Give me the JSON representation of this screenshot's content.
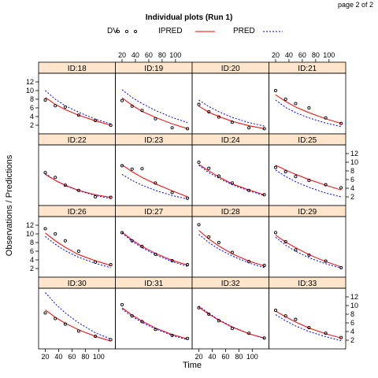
{
  "page_label": "page 2 of 2",
  "chart_data": {
    "type": "scatter",
    "title": "Individual plots (Run 1)",
    "xlabel": "Time",
    "ylabel": "Observations / Predictions",
    "xlim": [
      10,
      125
    ],
    "ylim": [
      0,
      14
    ],
    "x_ticks": [
      20,
      40,
      60,
      80,
      100
    ],
    "y_ticks": [
      2,
      4,
      6,
      8,
      10,
      12
    ],
    "layout": {
      "cols": 4,
      "rows": 4
    },
    "legend": [
      {
        "name": "DV",
        "style": "open-circles",
        "color": "#000000"
      },
      {
        "name": "IPRED",
        "style": "solid-line",
        "color": "#ff0000"
      },
      {
        "name": "PRED",
        "style": "dashed-line",
        "color": "#0000ff"
      }
    ],
    "x": [
      20,
      35,
      50,
      70,
      95,
      118
    ],
    "panels": [
      {
        "id": "ID:18",
        "dv": [
          7.8,
          6.5,
          6.2,
          4.3,
          3.1,
          2.0
        ],
        "ipred": [
          8.4,
          6.8,
          5.6,
          4.3,
          3.0,
          2.0
        ],
        "pred": [
          10.0,
          8.0,
          6.5,
          5.0,
          3.4,
          2.3
        ]
      },
      {
        "id": "ID:19",
        "dv": [
          7.7,
          6.4,
          5.4,
          3.5,
          1.4,
          1.2
        ],
        "ipred": [
          8.3,
          6.6,
          5.2,
          3.8,
          2.3,
          1.2
        ],
        "pred": [
          10.2,
          8.4,
          7.0,
          5.4,
          3.8,
          2.6
        ]
      },
      {
        "id": "ID:20",
        "dv": [
          6.8,
          5.1,
          3.9,
          2.7,
          1.4,
          1.2
        ],
        "ipred": [
          6.4,
          5.0,
          4.0,
          2.9,
          1.9,
          1.2
        ],
        "pred": [
          7.8,
          6.3,
          5.1,
          3.8,
          2.6,
          1.8
        ]
      },
      {
        "id": "ID:21",
        "dv": [
          10.0,
          8.0,
          7.0,
          6.0,
          3.7,
          2.4
        ],
        "ipred": [
          9.0,
          7.5,
          6.2,
          4.9,
          3.5,
          2.4
        ],
        "pred": [
          7.8,
          6.1,
          4.9,
          3.7,
          2.5,
          1.7
        ]
      },
      {
        "id": "ID:22",
        "dv": [
          7.6,
          6.5,
          4.7,
          3.5,
          2.0,
          1.9
        ],
        "ipred": [
          7.2,
          5.8,
          4.7,
          3.5,
          2.5,
          1.9
        ],
        "pred": [
          7.4,
          5.8,
          4.6,
          3.4,
          2.3,
          1.6
        ]
      },
      {
        "id": "ID:23",
        "dv": [
          9.2,
          8.4,
          8.5,
          5.2,
          3.0,
          1.7
        ],
        "ipred": [
          9.4,
          7.8,
          6.5,
          5.0,
          3.4,
          2.0
        ],
        "pred": [
          7.2,
          5.8,
          4.7,
          3.5,
          2.3,
          1.5
        ]
      },
      {
        "id": "ID:24",
        "dv": [
          10.0,
          8.6,
          6.8,
          5.2,
          3.5,
          2.5
        ],
        "ipred": [
          9.5,
          8.0,
          6.6,
          5.0,
          3.6,
          2.5
        ],
        "pred": [
          9.3,
          7.6,
          6.3,
          4.8,
          3.4,
          2.3
        ]
      },
      {
        "id": "ID:25",
        "dv": [
          8.8,
          7.8,
          6.7,
          5.8,
          4.8,
          4.1
        ],
        "ipred": [
          9.3,
          8.2,
          7.2,
          6.0,
          4.7,
          3.6
        ],
        "pred": [
          8.2,
          6.7,
          5.5,
          4.2,
          2.9,
          2.0
        ]
      },
      {
        "id": "ID:26",
        "dv": [
          11.2,
          10.0,
          8.4,
          6.0,
          3.5,
          2.9
        ],
        "ipred": [
          10.2,
          8.4,
          6.9,
          5.2,
          3.8,
          2.7
        ],
        "pred": [
          9.4,
          7.6,
          6.1,
          4.6,
          3.2,
          2.2
        ]
      },
      {
        "id": "ID:27",
        "dv": [
          10.3,
          8.4,
          7.1,
          5.3,
          3.8,
          2.9
        ],
        "ipred": [
          10.4,
          8.6,
          7.1,
          5.5,
          3.9,
          2.8
        ],
        "pred": [
          10.2,
          8.3,
          6.8,
          5.2,
          3.6,
          2.5
        ]
      },
      {
        "id": "ID:28",
        "dv": [
          12.1,
          9.3,
          8.0,
          5.7,
          3.6,
          2.7
        ],
        "ipred": [
          10.8,
          8.8,
          7.2,
          5.4,
          3.7,
          2.6
        ],
        "pred": [
          9.9,
          8.0,
          6.5,
          4.9,
          3.3,
          2.2
        ]
      },
      {
        "id": "ID:29",
        "dv": [
          10.3,
          8.2,
          6.3,
          5.1,
          3.7,
          2.2
        ],
        "ipred": [
          9.7,
          8.1,
          6.8,
          5.2,
          3.6,
          2.4
        ],
        "pred": [
          9.2,
          7.4,
          6.0,
          4.5,
          3.1,
          2.1
        ]
      },
      {
        "id": "ID:30",
        "dv": [
          8.3,
          7.0,
          5.7,
          4.1,
          2.9,
          2.1
        ],
        "ipred": [
          9.0,
          7.3,
          5.9,
          4.4,
          2.9,
          1.8
        ],
        "pred": [
          13.0,
          10.4,
          8.3,
          6.0,
          3.7,
          2.3
        ]
      },
      {
        "id": "ID:31",
        "dv": [
          10.2,
          7.6,
          6.3,
          4.5,
          3.1,
          2.4
        ],
        "ipred": [
          9.5,
          7.8,
          6.4,
          4.8,
          3.3,
          2.3
        ],
        "pred": [
          9.2,
          7.5,
          6.1,
          4.6,
          3.1,
          2.1
        ]
      },
      {
        "id": "ID:32",
        "dv": [
          9.5,
          8.0,
          6.5,
          4.7,
          3.6,
          2.5
        ],
        "ipred": [
          9.6,
          8.0,
          6.6,
          5.0,
          3.5,
          2.5
        ],
        "pred": [
          9.9,
          8.2,
          6.7,
          5.1,
          3.5,
          2.4
        ]
      },
      {
        "id": "ID:33",
        "dv": [
          8.9,
          7.6,
          6.8,
          4.9,
          3.6,
          2.6
        ],
        "ipred": [
          8.7,
          7.4,
          6.2,
          4.8,
          3.5,
          2.5
        ],
        "pred": [
          7.9,
          6.5,
          5.3,
          4.0,
          2.8,
          1.9
        ]
      }
    ]
  }
}
